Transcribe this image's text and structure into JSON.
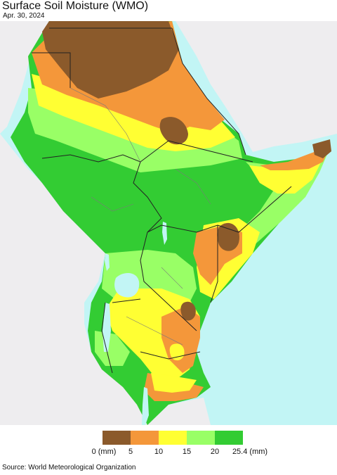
{
  "title": "Surface Soil Moisture (WMO)",
  "date": "Apr. 30, 2024",
  "source": "Source: World Meteorological Organization",
  "colors": {
    "ocean": "#c2f5f5",
    "land_outside": "#eeedef",
    "lake": "#c2f5f5",
    "border": "#222222",
    "admin": "#7a7a7a"
  },
  "legend": {
    "unit_start": "0 (mm)",
    "unit_end": "25.4 (mm)",
    "ticks": [
      "5",
      "10",
      "15",
      "20"
    ],
    "colors": [
      "#8b5a2b",
      "#f4973a",
      "#ffff33",
      "#99ff66",
      "#33cc33"
    ]
  }
}
